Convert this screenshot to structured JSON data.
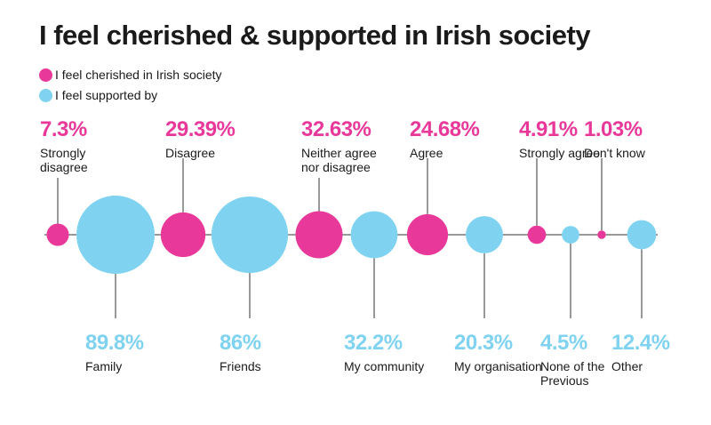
{
  "title": "I feel cherished & supported in Irish society",
  "colors": {
    "cherished": "#e8399a",
    "supported": "#7fd3f0",
    "axis": "#333333"
  },
  "legend": {
    "cherished": "I feel cherished in Irish society",
    "supported": "I feel supported by"
  },
  "chart_data": {
    "type": "bubble",
    "title": "I feel cherished & supported in Irish society",
    "series": [
      {
        "name": "I feel cherished in Irish society",
        "points": [
          {
            "label": "Strongly disagree",
            "value": 7.3,
            "display": "7.3%",
            "lines": [
              "Strongly",
              "disagree"
            ]
          },
          {
            "label": "Disagree",
            "value": 29.39,
            "display": "29.39%",
            "lines": [
              "Disagree"
            ]
          },
          {
            "label": "Neither agree nor disagree",
            "value": 32.63,
            "display": "32.63%",
            "lines": [
              "Neither agree",
              "nor disagree"
            ]
          },
          {
            "label": "Agree",
            "value": 24.68,
            "display": "24.68%",
            "lines": [
              "Agree"
            ]
          },
          {
            "label": "Strongly agree",
            "value": 4.91,
            "display": "4.91%",
            "lines": [
              "Strongly agree"
            ]
          },
          {
            "label": "Don't know",
            "value": 1.03,
            "display": "1.03%",
            "lines": [
              "Don't know"
            ]
          }
        ]
      },
      {
        "name": "I feel supported by",
        "points": [
          {
            "label": "Family",
            "value": 89.8,
            "display": "89.8%",
            "lines": [
              "Family"
            ]
          },
          {
            "label": "Friends",
            "value": 86,
            "display": "86%",
            "lines": [
              "Friends"
            ]
          },
          {
            "label": "My community",
            "value": 32.2,
            "display": "32.2%",
            "lines": [
              "My community"
            ]
          },
          {
            "label": "My organisation",
            "value": 20.3,
            "display": "20.3%",
            "lines": [
              "My organisation"
            ]
          },
          {
            "label": "None of the Previous",
            "value": 4.5,
            "display": "4.5%",
            "lines": [
              "None of the",
              "Previous"
            ]
          },
          {
            "label": "Other",
            "value": 12.4,
            "display": "12.4%",
            "lines": [
              "Other"
            ]
          }
        ]
      }
    ],
    "order": [
      "s0:0",
      "s1:0",
      "s0:1",
      "s1:1",
      "s0:2",
      "s1:2",
      "s0:3",
      "s1:3",
      "s0:4",
      "s1:4",
      "s0:5",
      "s1:5"
    ]
  }
}
